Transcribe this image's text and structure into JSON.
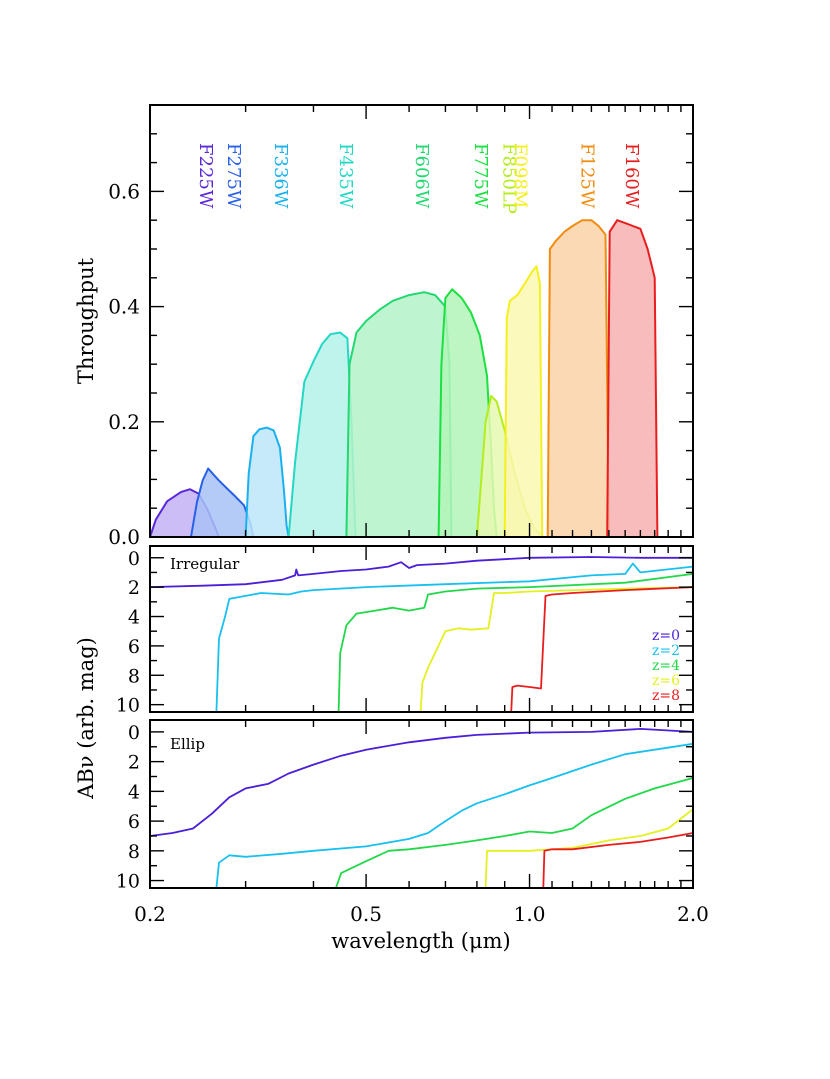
{
  "figure": {
    "xlabel": "wavelength (μm)",
    "x_ticks": [
      "0.2",
      "0.5",
      "1.0",
      "2.0"
    ]
  },
  "chart_data": [
    {
      "type": "area",
      "panel": "throughput",
      "ylabel": "Throughput",
      "xscale": "log",
      "xlim": [
        0.2,
        2.0
      ],
      "ylim": [
        0,
        0.75
      ],
      "y_ticks": [
        "0.0",
        "0.2",
        "0.4",
        "0.6"
      ],
      "y_tick_values": [
        0.0,
        0.2,
        0.4,
        0.6
      ],
      "series": [
        {
          "name": "F225W",
          "color": "#5a28d8",
          "fill": "#c4b2f4",
          "x": [
            0.195,
            0.205,
            0.215,
            0.228,
            0.237,
            0.246,
            0.256,
            0.268
          ],
          "y": [
            0.0,
            0.03,
            0.062,
            0.078,
            0.083,
            0.075,
            0.045,
            0.0
          ]
        },
        {
          "name": "F275W",
          "color": "#2860e8",
          "fill": "#a8c2f6",
          "x": [
            0.238,
            0.244,
            0.25,
            0.256,
            0.262,
            0.268,
            0.276,
            0.286,
            0.298,
            0.306,
            0.31
          ],
          "y": [
            0.0,
            0.06,
            0.098,
            0.119,
            0.108,
            0.098,
            0.086,
            0.072,
            0.055,
            0.025,
            0.0
          ]
        },
        {
          "name": "F336W",
          "color": "#1ab0f0",
          "fill": "#bde6fa",
          "x": [
            0.3,
            0.304,
            0.31,
            0.318,
            0.328,
            0.338,
            0.347,
            0.353,
            0.357,
            0.36
          ],
          "y": [
            0.0,
            0.11,
            0.175,
            0.187,
            0.19,
            0.185,
            0.155,
            0.08,
            0.02,
            0.0
          ]
        },
        {
          "name": "F435W",
          "color": "#22d8c4",
          "fill": "#b4f2ea",
          "x": [
            0.36,
            0.37,
            0.385,
            0.4,
            0.415,
            0.43,
            0.448,
            0.462,
            0.47,
            0.478
          ],
          "y": [
            0.0,
            0.13,
            0.27,
            0.305,
            0.335,
            0.352,
            0.355,
            0.345,
            0.2,
            0.0
          ]
        },
        {
          "name": "F606W",
          "color": "#22d870",
          "fill": "#b4f2c8",
          "x": [
            0.46,
            0.466,
            0.48,
            0.5,
            0.53,
            0.56,
            0.6,
            0.64,
            0.67,
            0.7,
            0.712,
            0.718
          ],
          "y": [
            0.0,
            0.3,
            0.355,
            0.375,
            0.395,
            0.41,
            0.42,
            0.425,
            0.42,
            0.4,
            0.3,
            0.0
          ]
        },
        {
          "name": "F775W",
          "color": "#1ae040",
          "fill": "#b2f4b8",
          "x": [
            0.68,
            0.688,
            0.7,
            0.72,
            0.75,
            0.78,
            0.81,
            0.835,
            0.85,
            0.86,
            0.87
          ],
          "y": [
            0.0,
            0.3,
            0.415,
            0.43,
            0.415,
            0.39,
            0.35,
            0.28,
            0.15,
            0.05,
            0.0
          ]
        },
        {
          "name": "F850LP",
          "color": "#b4ec1c",
          "fill": "#e6f8b0",
          "x": [
            0.8,
            0.815,
            0.83,
            0.85,
            0.87,
            0.9,
            0.94,
            0.98,
            1.02,
            1.06
          ],
          "y": [
            0.0,
            0.1,
            0.2,
            0.245,
            0.235,
            0.185,
            0.11,
            0.05,
            0.015,
            0.0
          ]
        },
        {
          "name": "F098M",
          "color": "#f4f020",
          "fill": "#fbf8b0",
          "x": [
            0.9,
            0.908,
            0.92,
            0.95,
            0.98,
            1.01,
            1.03,
            1.045,
            1.055
          ],
          "y": [
            0.0,
            0.38,
            0.41,
            0.42,
            0.44,
            0.46,
            0.47,
            0.44,
            0.0
          ]
        },
        {
          "name": "F125W",
          "color": "#f08c10",
          "fill": "#fcd2a8",
          "x": [
            1.08,
            1.09,
            1.12,
            1.16,
            1.2,
            1.25,
            1.3,
            1.34,
            1.38,
            1.4
          ],
          "y": [
            0.0,
            0.5,
            0.515,
            0.53,
            0.54,
            0.55,
            0.55,
            0.54,
            0.525,
            0.0
          ]
        },
        {
          "name": "F160W",
          "color": "#e81e1e",
          "fill": "#f8b0b0",
          "x": [
            1.39,
            1.405,
            1.45,
            1.5,
            1.55,
            1.6,
            1.65,
            1.68,
            1.7,
            1.72
          ],
          "y": [
            0.0,
            0.53,
            0.55,
            0.545,
            0.54,
            0.535,
            0.5,
            0.47,
            0.45,
            0.0
          ]
        }
      ],
      "filter_labels": [
        "F225W",
        "F275W",
        "F336W",
        "F435W",
        "F606W",
        "F775W",
        "F850LP",
        "F098M",
        "F125W",
        "F160W"
      ]
    },
    {
      "type": "line",
      "panel": "irregular",
      "label": "Irregular",
      "xscale": "log",
      "xlim": [
        0.2,
        2.0
      ],
      "ylim": [
        10.5,
        -0.8
      ],
      "y_ticks": [
        "0",
        "2",
        "4",
        "6",
        "8",
        "10"
      ],
      "y_tick_values": [
        0,
        2,
        4,
        6,
        8,
        10
      ],
      "legend": [
        "z=0",
        "z=2",
        "z=4",
        "z=6",
        "z=8"
      ],
      "legend_position": "right",
      "series": [
        {
          "name": "z=0",
          "color": "#4b1ed8",
          "x": [
            0.2,
            0.25,
            0.3,
            0.35,
            0.37,
            0.372,
            0.375,
            0.4,
            0.45,
            0.5,
            0.55,
            0.58,
            0.6,
            0.62,
            0.7,
            0.8,
            1.0,
            1.3,
            1.6,
            2.0
          ],
          "y": [
            2.0,
            1.9,
            1.8,
            1.5,
            1.2,
            0.8,
            1.2,
            1.1,
            0.9,
            0.8,
            0.6,
            0.3,
            0.7,
            0.5,
            0.4,
            0.2,
            0.0,
            -0.05,
            0.0,
            0.0
          ]
        },
        {
          "name": "z=2",
          "color": "#18c0f0",
          "x": [
            0.265,
            0.268,
            0.275,
            0.28,
            0.3,
            0.32,
            0.36,
            0.38,
            0.4,
            0.5,
            0.7,
            1.0,
            1.3,
            1.5,
            1.55,
            1.6,
            2.0
          ],
          "y": [
            10.5,
            5.5,
            4.0,
            2.8,
            2.6,
            2.4,
            2.5,
            2.3,
            2.2,
            2.0,
            1.8,
            1.6,
            1.2,
            1.1,
            0.4,
            1.0,
            0.6
          ]
        },
        {
          "name": "z=4",
          "color": "#22d84a",
          "x": [
            0.445,
            0.448,
            0.46,
            0.48,
            0.52,
            0.56,
            0.6,
            0.64,
            0.65,
            0.7,
            0.8,
            1.0,
            1.5,
            2.0
          ],
          "y": [
            10.5,
            6.5,
            4.6,
            3.8,
            3.6,
            3.4,
            3.6,
            3.4,
            2.5,
            2.3,
            2.1,
            2.0,
            1.7,
            1.1
          ]
        },
        {
          "name": "z=6",
          "color": "#e4f020",
          "x": [
            0.63,
            0.635,
            0.65,
            0.7,
            0.74,
            0.78,
            0.84,
            0.86,
            0.9,
            1.0,
            1.5,
            2.0
          ],
          "y": [
            10.5,
            8.5,
            7.5,
            5.0,
            4.8,
            4.9,
            4.8,
            2.4,
            2.4,
            2.3,
            2.1,
            2.0
          ]
        },
        {
          "name": "z=8",
          "color": "#e81e1e",
          "x": [
            0.925,
            0.93,
            0.95,
            1.0,
            1.05,
            1.07,
            1.1,
            1.2,
            1.5,
            2.0
          ],
          "y": [
            10.5,
            8.8,
            8.7,
            8.8,
            8.9,
            2.6,
            2.5,
            2.4,
            2.2,
            2.0
          ]
        }
      ]
    },
    {
      "type": "line",
      "panel": "ellip",
      "label": "Ellip",
      "xscale": "log",
      "xlim": [
        0.2,
        2.0
      ],
      "ylim": [
        10.5,
        -0.8
      ],
      "y_ticks": [
        "0",
        "2",
        "4",
        "6",
        "8",
        "10"
      ],
      "y_tick_values": [
        0,
        2,
        4,
        6,
        8,
        10
      ],
      "series": [
        {
          "name": "z=0",
          "color": "#4b1ed8",
          "x": [
            0.2,
            0.22,
            0.24,
            0.26,
            0.28,
            0.3,
            0.33,
            0.36,
            0.4,
            0.45,
            0.5,
            0.6,
            0.7,
            0.8,
            1.0,
            1.3,
            1.6,
            2.0
          ],
          "y": [
            7.0,
            6.8,
            6.5,
            5.5,
            4.4,
            3.8,
            3.5,
            2.8,
            2.2,
            1.6,
            1.2,
            0.7,
            0.4,
            0.2,
            0.05,
            0.0,
            -0.2,
            0.0
          ]
        },
        {
          "name": "z=2",
          "color": "#18c0f0",
          "x": [
            0.265,
            0.268,
            0.28,
            0.3,
            0.35,
            0.4,
            0.5,
            0.6,
            0.65,
            0.7,
            0.75,
            0.8,
            0.9,
            1.0,
            1.1,
            1.3,
            1.5,
            2.0
          ],
          "y": [
            10.5,
            8.8,
            8.3,
            8.4,
            8.2,
            8.0,
            7.7,
            7.2,
            6.8,
            6.0,
            5.3,
            4.8,
            4.2,
            3.6,
            3.1,
            2.2,
            1.5,
            0.8
          ]
        },
        {
          "name": "z=4",
          "color": "#22d84a",
          "x": [
            0.44,
            0.45,
            0.5,
            0.55,
            0.6,
            0.7,
            0.8,
            0.9,
            1.0,
            1.1,
            1.2,
            1.3,
            1.5,
            1.7,
            2.0
          ],
          "y": [
            10.5,
            9.5,
            8.7,
            8.0,
            7.9,
            7.6,
            7.3,
            7.0,
            6.7,
            6.8,
            6.5,
            5.6,
            4.5,
            3.8,
            3.1
          ]
        },
        {
          "name": "z=6",
          "color": "#e4f020",
          "x": [
            0.83,
            0.835,
            0.9,
            1.0,
            1.2,
            1.4,
            1.6,
            1.8,
            2.0
          ],
          "y": [
            10.5,
            8.0,
            8.0,
            8.0,
            7.8,
            7.3,
            7.0,
            6.5,
            5.2
          ]
        },
        {
          "name": "z=8",
          "color": "#e81e1e",
          "x": [
            1.06,
            1.065,
            1.1,
            1.2,
            1.4,
            1.6,
            1.8,
            2.0
          ],
          "y": [
            10.5,
            8.0,
            7.9,
            7.9,
            7.6,
            7.4,
            7.1,
            6.8
          ]
        }
      ]
    }
  ],
  "shared_ylabel": "ABν (arb. mag)"
}
